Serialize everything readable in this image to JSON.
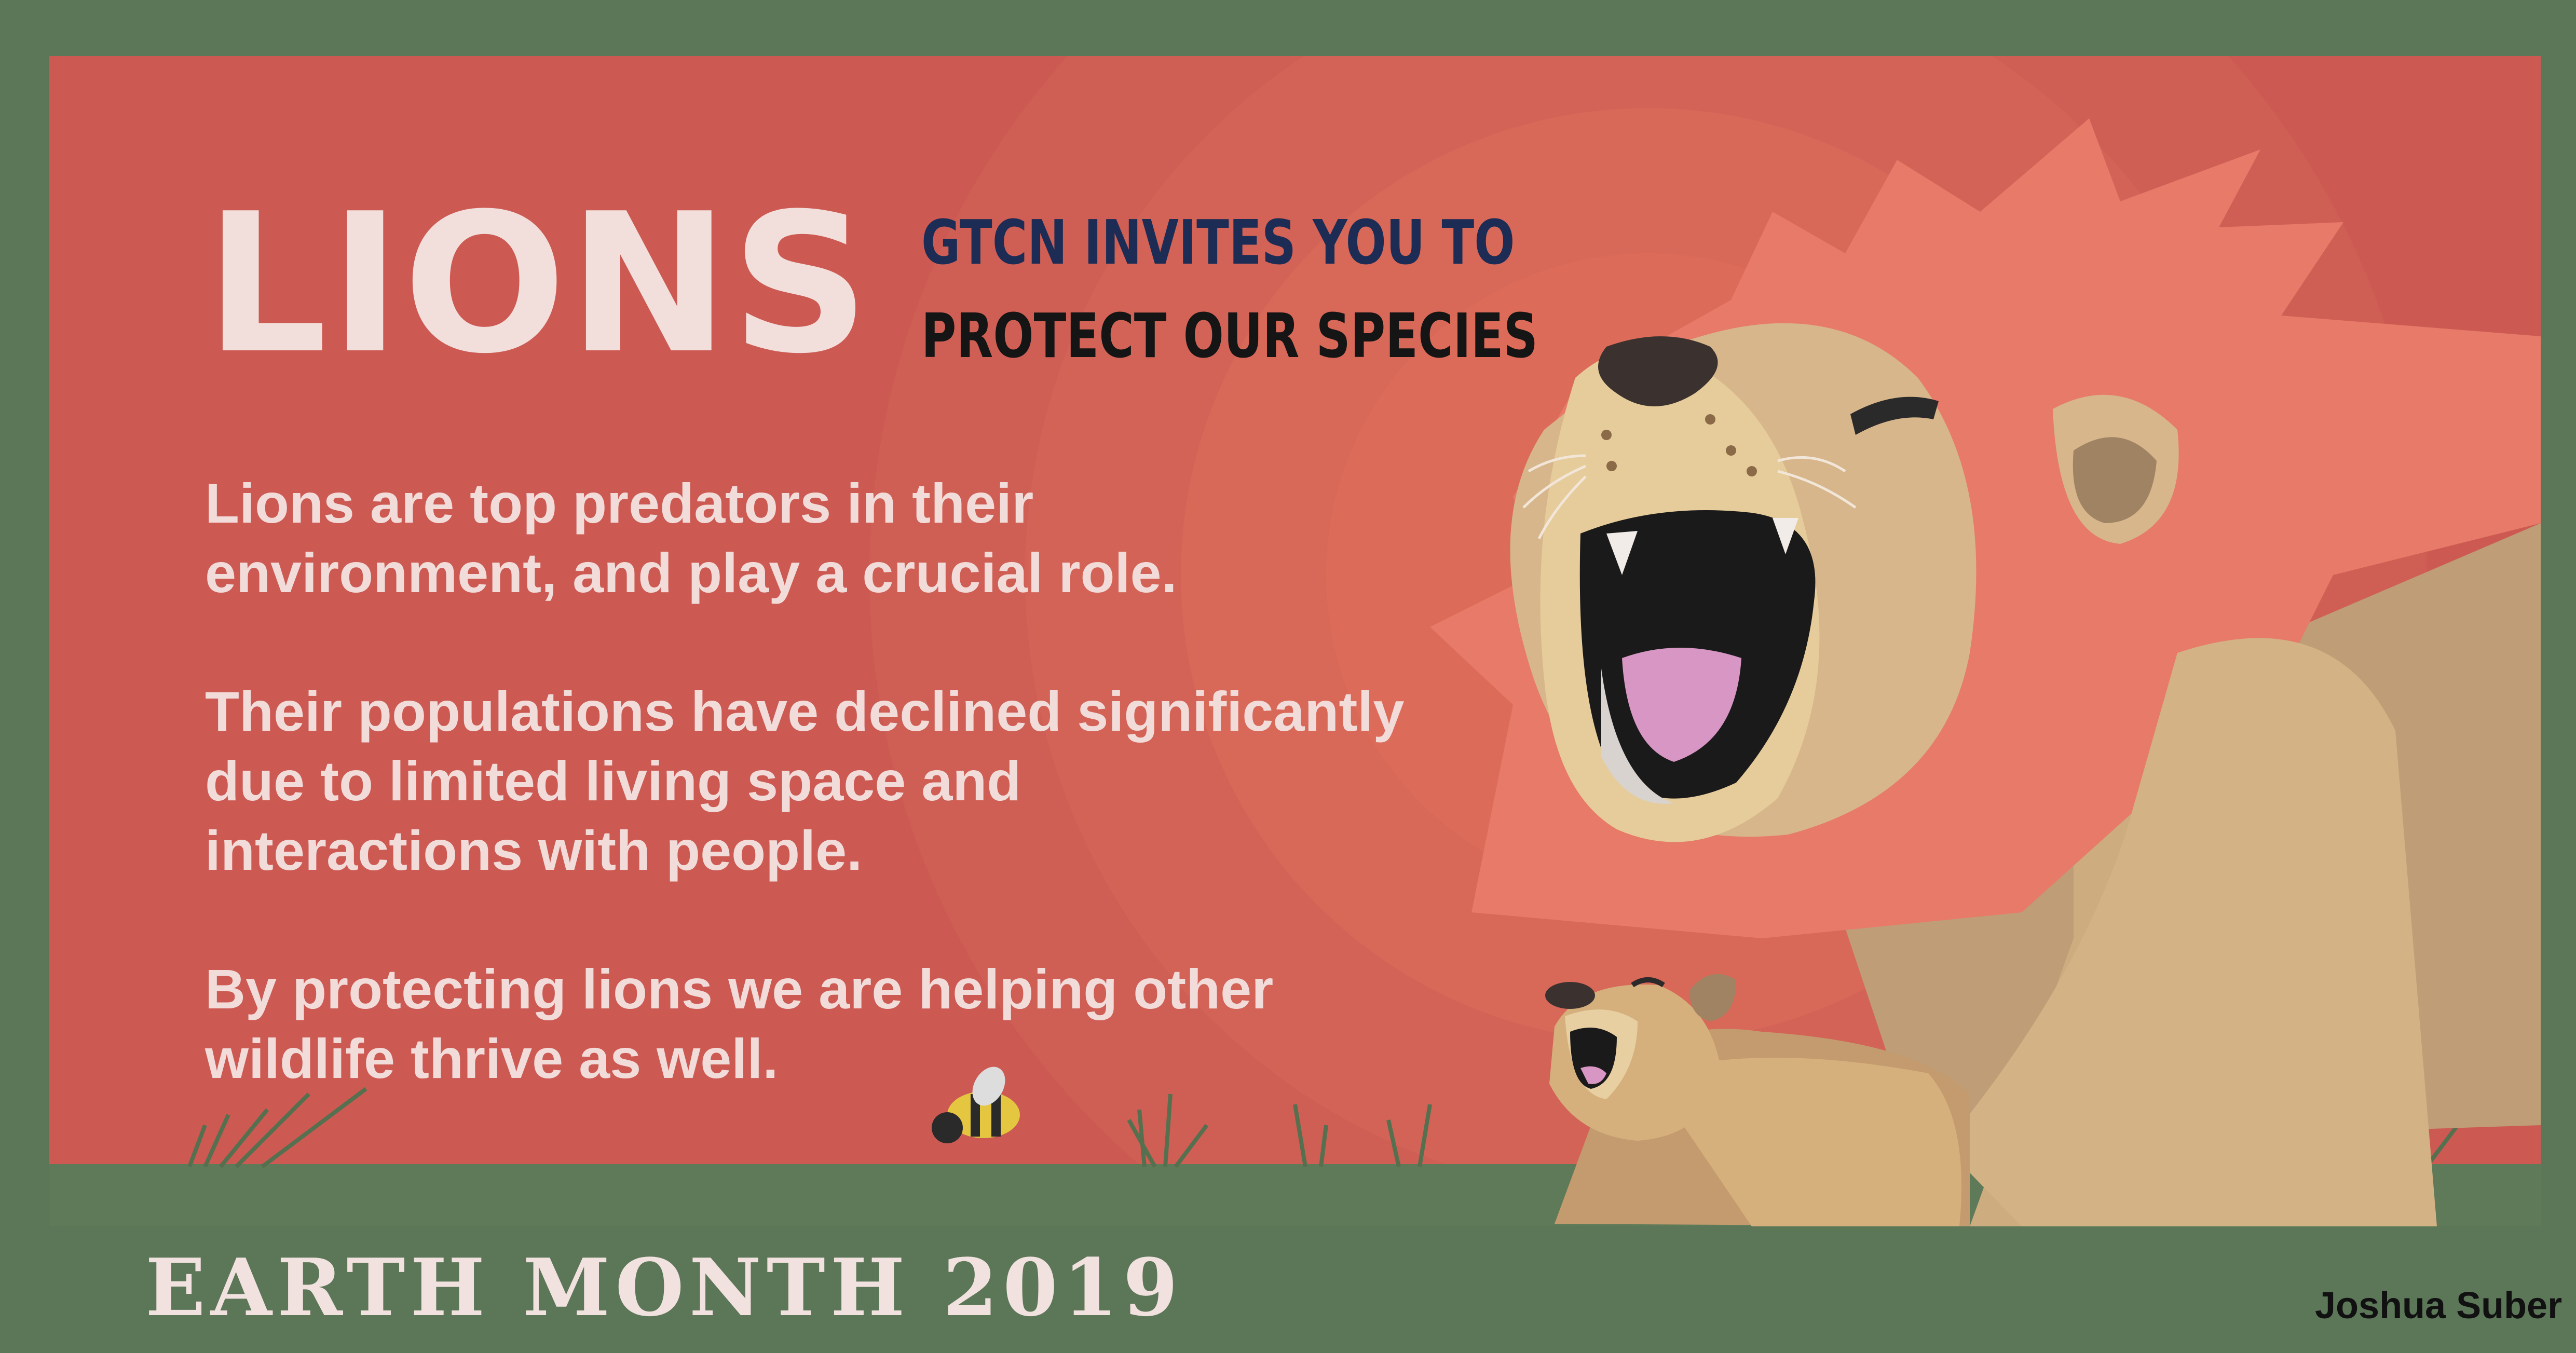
{
  "poster": {
    "title": "LIONS",
    "invite_line1": "GTCN INVITES YOU TO",
    "invite_line2": "PROTECT OUR SPECIES",
    "paragraphs": [
      "Lions are top predators in their\nenvironment, and  play a crucial role.",
      "Their populations have declined significantly\ndue to limited living space and\ninteractions with people.",
      "By protecting lions we are helping other\nwildlife thrive as well."
    ],
    "footer": "EARTH MONTH 2019",
    "credit": "Joshua Suber"
  },
  "colors": {
    "frame": "#5c7658",
    "background": "#cc5a53",
    "mane": "#e77a68",
    "fur": "#d7b68c",
    "fur_light": "#e6cc9a",
    "title_text": "#f2dfdc",
    "invite_text": "#1c2c55"
  }
}
